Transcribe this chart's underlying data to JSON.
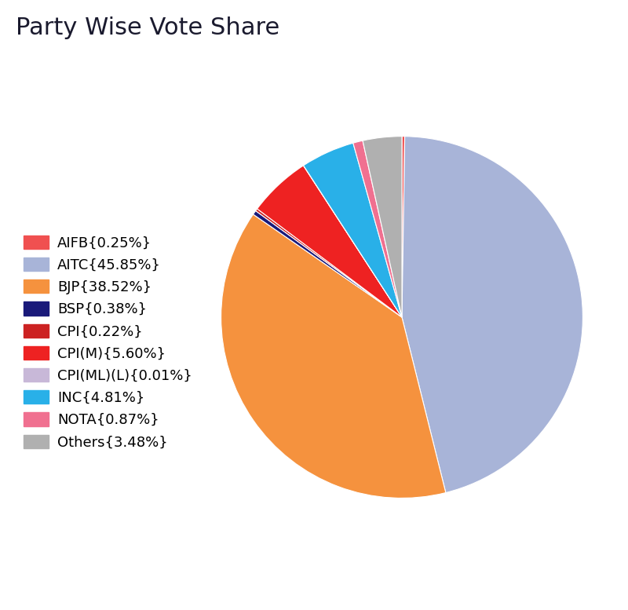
{
  "title": "Party Wise Vote Share",
  "title_bg_color": "#c8bfea",
  "background_color": "#ffffff",
  "parties": [
    {
      "name": "AIFB{0.25%}",
      "value": 0.25,
      "color": "#f05050"
    },
    {
      "name": "AITC{45.85%}",
      "value": 45.85,
      "color": "#a8b4d8"
    },
    {
      "name": "BJP{38.52%}",
      "value": 38.52,
      "color": "#f5923e"
    },
    {
      "name": "BSP{0.38%}",
      "value": 0.38,
      "color": "#1a1a7a"
    },
    {
      "name": "CPI{0.22%}",
      "value": 0.22,
      "color": "#cc2222"
    },
    {
      "name": "CPI(M){5.60%}",
      "value": 5.6,
      "color": "#ee2222"
    },
    {
      "name": "CPI(ML)(L){0.01%}",
      "value": 0.01,
      "color": "#c8b8d8"
    },
    {
      "name": "INC{4.81%}",
      "value": 4.81,
      "color": "#29b0e8"
    },
    {
      "name": "NOTA{0.87%}",
      "value": 0.87,
      "color": "#f07090"
    },
    {
      "name": "Others{3.48%}",
      "value": 3.48,
      "color": "#b0b0b0"
    }
  ],
  "figsize": [
    8.0,
    7.77
  ],
  "dpi": 100,
  "title_fontsize": 22,
  "legend_fontsize": 13
}
